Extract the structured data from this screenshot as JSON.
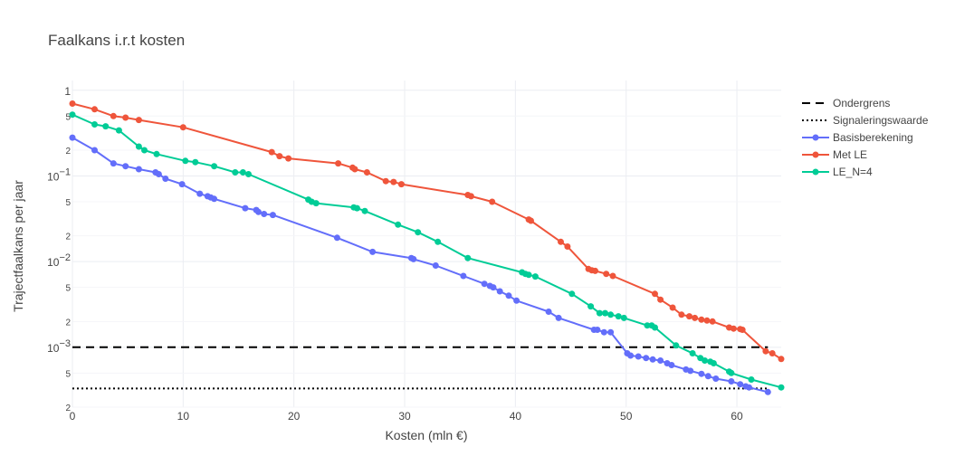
{
  "chart_data": {
    "type": "line",
    "title": "Faalkans i.r.t kosten",
    "xlabel": "Kosten (mln €)",
    "ylabel": "Trajectfaalkans per jaar",
    "xlim": [
      0,
      64
    ],
    "ylim": [
      0.0002,
      1.3
    ],
    "yscale": "log",
    "grid": true,
    "legend_position": "right",
    "x_ticks": [
      "0",
      "10",
      "20",
      "30",
      "40",
      "50",
      "60"
    ],
    "y_major_ticks": [
      {
        "v": 1,
        "label": "1"
      },
      {
        "v": 0.1,
        "label": "10",
        "exp": "−1"
      },
      {
        "v": 0.01,
        "label": "10",
        "exp": "−2"
      },
      {
        "v": 0.001,
        "label": "10",
        "exp": "−3"
      }
    ],
    "y_minor_ticks": [
      {
        "v": 0.5,
        "label": "5"
      },
      {
        "v": 0.2,
        "label": "2"
      },
      {
        "v": 0.05,
        "label": "5"
      },
      {
        "v": 0.02,
        "label": "2"
      },
      {
        "v": 0.005,
        "label": "5"
      },
      {
        "v": 0.002,
        "label": "2"
      },
      {
        "v": 0.0005,
        "label": "5"
      },
      {
        "v": 0.0002,
        "label": "2"
      }
    ],
    "series": [
      {
        "name": "Ondergrens",
        "kind": "dash",
        "color": "#000000",
        "x": [
          0,
          62.8
        ],
        "y": [
          0.001,
          0.001
        ]
      },
      {
        "name": "Signaleringswaarde",
        "kind": "dot",
        "color": "#000000",
        "x": [
          0,
          62.8
        ],
        "y": [
          0.00033,
          0.00033
        ]
      },
      {
        "name": "Basisberekening",
        "kind": "markers",
        "color": "#636efa",
        "x": [
          0,
          2,
          3.7,
          4.8,
          6,
          7.5,
          7.8,
          8.4,
          9.9,
          11.5,
          12.2,
          12.5,
          12.8,
          15.6,
          16.6,
          16.8,
          17.3,
          18.1,
          23.9,
          27.1,
          30.6,
          30.8,
          32.8,
          35.3,
          37.2,
          37.7,
          38,
          38.6,
          39.4,
          40.1,
          43,
          43.9,
          47.1,
          47.4,
          48,
          48.6,
          50.1,
          50.4,
          51.1,
          51.8,
          52.4,
          53.1,
          53.7,
          54.1,
          55.4,
          55.8,
          56.8,
          57.4,
          58.1,
          59.5,
          60.3,
          60.8,
          61.1,
          62.8
        ],
        "y": [
          0.28,
          0.2,
          0.14,
          0.13,
          0.12,
          0.11,
          0.105,
          0.093,
          0.08,
          0.062,
          0.058,
          0.056,
          0.054,
          0.042,
          0.04,
          0.038,
          0.036,
          0.035,
          0.019,
          0.013,
          0.011,
          0.0107,
          0.009,
          0.0068,
          0.0055,
          0.0052,
          0.005,
          0.0045,
          0.004,
          0.0035,
          0.0026,
          0.0022,
          0.0016,
          0.0016,
          0.0015,
          0.0015,
          0.00085,
          0.0008,
          0.00078,
          0.00075,
          0.00072,
          0.0007,
          0.00065,
          0.00062,
          0.00055,
          0.00053,
          0.00049,
          0.00046,
          0.00043,
          0.0004,
          0.00037,
          0.00035,
          0.00034,
          0.0003
        ]
      },
      {
        "name": "Met LE",
        "kind": "markers",
        "color": "#ef553b",
        "x": [
          0,
          2,
          3.7,
          4.8,
          6,
          10,
          18,
          18.7,
          19.5,
          24,
          25.3,
          25.5,
          26.6,
          28.3,
          29,
          29.7,
          35.7,
          36,
          37.9,
          41.2,
          41.4,
          44.1,
          44.7,
          46.6,
          46.9,
          47.2,
          48.2,
          48.8,
          52.6,
          53.1,
          54.2,
          55,
          55.7,
          56.2,
          56.8,
          57.3,
          57.8,
          59.3,
          59.7,
          60.3,
          60.5,
          62.6,
          63.2,
          64
        ],
        "y": [
          0.7,
          0.6,
          0.5,
          0.48,
          0.45,
          0.37,
          0.19,
          0.17,
          0.16,
          0.14,
          0.125,
          0.12,
          0.11,
          0.087,
          0.085,
          0.08,
          0.06,
          0.058,
          0.05,
          0.031,
          0.03,
          0.017,
          0.015,
          0.0082,
          0.0079,
          0.0078,
          0.0072,
          0.0068,
          0.0042,
          0.0036,
          0.0029,
          0.0024,
          0.0023,
          0.0022,
          0.0021,
          0.00205,
          0.002,
          0.0017,
          0.00165,
          0.00163,
          0.0016,
          0.0009,
          0.00085,
          0.00073
        ]
      },
      {
        "name": "LE_N=4",
        "kind": "markers",
        "color": "#00cc96",
        "x": [
          0,
          2,
          3,
          4.2,
          6,
          6.5,
          7.6,
          10.2,
          11.1,
          12.8,
          14.7,
          15.4,
          15.9,
          21.3,
          21.6,
          22,
          25.4,
          25.7,
          26.4,
          29.4,
          31.2,
          33,
          35.7,
          40.6,
          40.9,
          41.2,
          41.8,
          45.1,
          46.8,
          47.6,
          48.1,
          48.6,
          49.3,
          49.8,
          51.9,
          52.3,
          52.6,
          54.5,
          56,
          56.7,
          57.1,
          57.6,
          57.9,
          59.3,
          59.5,
          61.3,
          64
        ],
        "y": [
          0.52,
          0.4,
          0.38,
          0.34,
          0.22,
          0.2,
          0.18,
          0.15,
          0.145,
          0.13,
          0.11,
          0.11,
          0.105,
          0.053,
          0.05,
          0.048,
          0.043,
          0.042,
          0.039,
          0.027,
          0.022,
          0.017,
          0.011,
          0.0075,
          0.0072,
          0.007,
          0.0067,
          0.0042,
          0.003,
          0.0025,
          0.0025,
          0.0024,
          0.0023,
          0.0022,
          0.0018,
          0.0018,
          0.0017,
          0.00105,
          0.00085,
          0.00075,
          0.0007,
          0.00068,
          0.00065,
          0.00052,
          0.0005,
          0.00042,
          0.00034
        ]
      }
    ]
  }
}
